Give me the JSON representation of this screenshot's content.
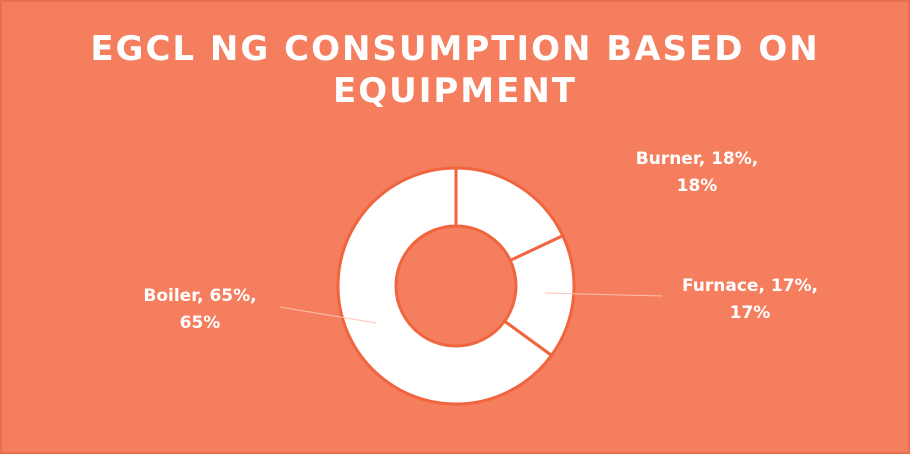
{
  "chart_data": {
    "type": "pie",
    "title": "EGCL NG CONSUMPTION BASED ON EQUIPMENT",
    "values": [
      18,
      17,
      65
    ],
    "value_labels": [
      "Burner, 18%, 18%",
      "Furnace, 17%, 17%",
      "Boiler, 65%, 65%"
    ],
    "color": "#ffffff",
    "stroke": "#f0653e",
    "background": "#f47e5e",
    "donut": true
  }
}
